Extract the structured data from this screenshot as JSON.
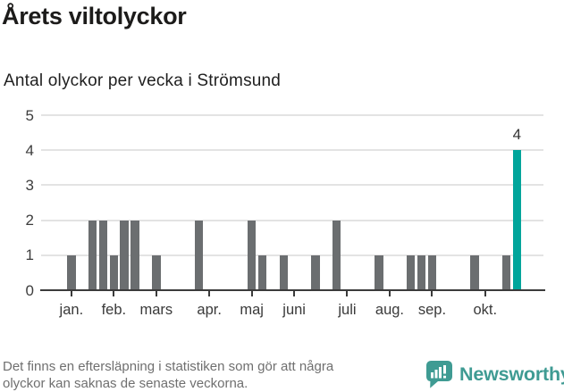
{
  "chart_data": {
    "type": "bar",
    "title": "Årets viltolyckor",
    "subtitle": "Antal olyckor per vecka i Strömsund",
    "x_unit": "week",
    "weeks_shown": 47,
    "ylim": [
      0,
      5
    ],
    "yticks": [
      0,
      1,
      2,
      3,
      4,
      5
    ],
    "grid": true,
    "bar_color": "#6b6e70",
    "highlight_color": "#00a59b",
    "bars": [
      {
        "week": 2,
        "value": 1
      },
      {
        "week": 4,
        "value": 2
      },
      {
        "week": 5,
        "value": 2
      },
      {
        "week": 6,
        "value": 1
      },
      {
        "week": 7,
        "value": 2
      },
      {
        "week": 8,
        "value": 2
      },
      {
        "week": 10,
        "value": 1
      },
      {
        "week": 14,
        "value": 2
      },
      {
        "week": 19,
        "value": 2
      },
      {
        "week": 20,
        "value": 1
      },
      {
        "week": 22,
        "value": 1
      },
      {
        "week": 25,
        "value": 1
      },
      {
        "week": 27,
        "value": 2
      },
      {
        "week": 31,
        "value": 1
      },
      {
        "week": 34,
        "value": 1
      },
      {
        "week": 35,
        "value": 1
      },
      {
        "week": 36,
        "value": 1
      },
      {
        "week": 40,
        "value": 1
      },
      {
        "week": 43,
        "value": 1
      },
      {
        "week": 44,
        "value": 4,
        "highlight": true,
        "label": "4"
      }
    ],
    "month_ticks": [
      {
        "label": "jan.",
        "week": 2
      },
      {
        "label": "feb.",
        "week": 6
      },
      {
        "label": "mars",
        "week": 10
      },
      {
        "label": "apr.",
        "week": 15
      },
      {
        "label": "maj",
        "week": 19
      },
      {
        "label": "juni",
        "week": 23
      },
      {
        "label": "juli",
        "week": 28
      },
      {
        "label": "aug.",
        "week": 32
      },
      {
        "label": "sep.",
        "week": 36
      },
      {
        "label": "okt.",
        "week": 41
      }
    ]
  },
  "footer": {
    "note_lines": [
      "Det finns en eftersläpning i statistiken som gör att några",
      "olyckor kan saknas de senaste veckorna."
    ],
    "brand": "Newsworthy",
    "brand_color": "#3f9b93"
  }
}
